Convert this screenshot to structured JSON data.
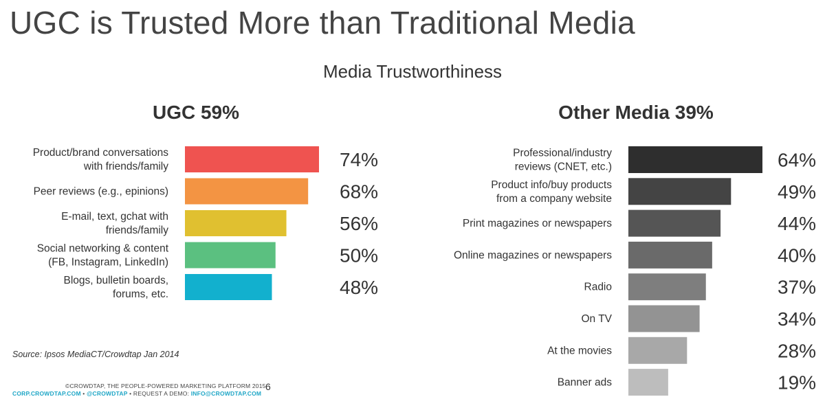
{
  "slide": {
    "title": "UGC is Trusted More than Traditional Media",
    "subtitle": "Media Trustworthiness",
    "source": "Source: Ipsos MediaCT/Crowdtap Jan 2014",
    "page_number": "6"
  },
  "footer": {
    "line1": "©CROWDTAP, THE PEOPLE-POWERED MARKETING PLATFORM 2015",
    "site_link": "CORP.CROWDTAP.COM",
    "sep1": " • ",
    "twitter_link": "@CROWDTAP",
    "demo_text": " • REQUEST A DEMO: ",
    "email_link": "INFO@CROWDTAP.COM",
    "link_color": "#1fa6c6"
  },
  "chart_data": [
    {
      "type": "bar",
      "orientation": "horizontal",
      "title": "UGC 59%",
      "categories": [
        [
          "Product/brand conversations",
          "with friends/family"
        ],
        [
          "Peer reviews (e.g., epinions)"
        ],
        [
          "E-mail, text, gchat with",
          "friends/family"
        ],
        [
          "Social networking & content",
          "(FB, Instagram, LinkedIn)"
        ],
        [
          "Blogs, bulletin boards,",
          "forums, etc."
        ]
      ],
      "values": [
        74,
        68,
        56,
        50,
        48
      ],
      "value_labels": [
        "74%",
        "68%",
        "56%",
        "50%",
        "48%"
      ],
      "colors": [
        "#ef5350",
        "#f39443",
        "#e0c030",
        "#5bc080",
        "#12b0ce"
      ],
      "xlim": [
        0,
        74
      ]
    },
    {
      "type": "bar",
      "orientation": "horizontal",
      "title": "Other Media 39%",
      "categories": [
        [
          "Professional/industry",
          "reviews (CNET, etc.)"
        ],
        [
          "Product info/buy products",
          "from a company website"
        ],
        [
          "Print magazines or newspapers"
        ],
        [
          "Online magazines or newspapers"
        ],
        [
          "Radio"
        ],
        [
          "On TV"
        ],
        [
          "At the movies"
        ],
        [
          "Banner ads"
        ]
      ],
      "values": [
        64,
        49,
        44,
        40,
        37,
        34,
        28,
        19
      ],
      "value_labels": [
        "64%",
        "49%",
        "44%",
        "40%",
        "37%",
        "34%",
        "28%",
        "19%"
      ],
      "colors": [
        "#2e2e2e",
        "#444444",
        "#555555",
        "#6a6a6a",
        "#7e7e7e",
        "#939393",
        "#a8a8a8",
        "#bdbdbd"
      ],
      "xlim": [
        0,
        64
      ]
    }
  ]
}
